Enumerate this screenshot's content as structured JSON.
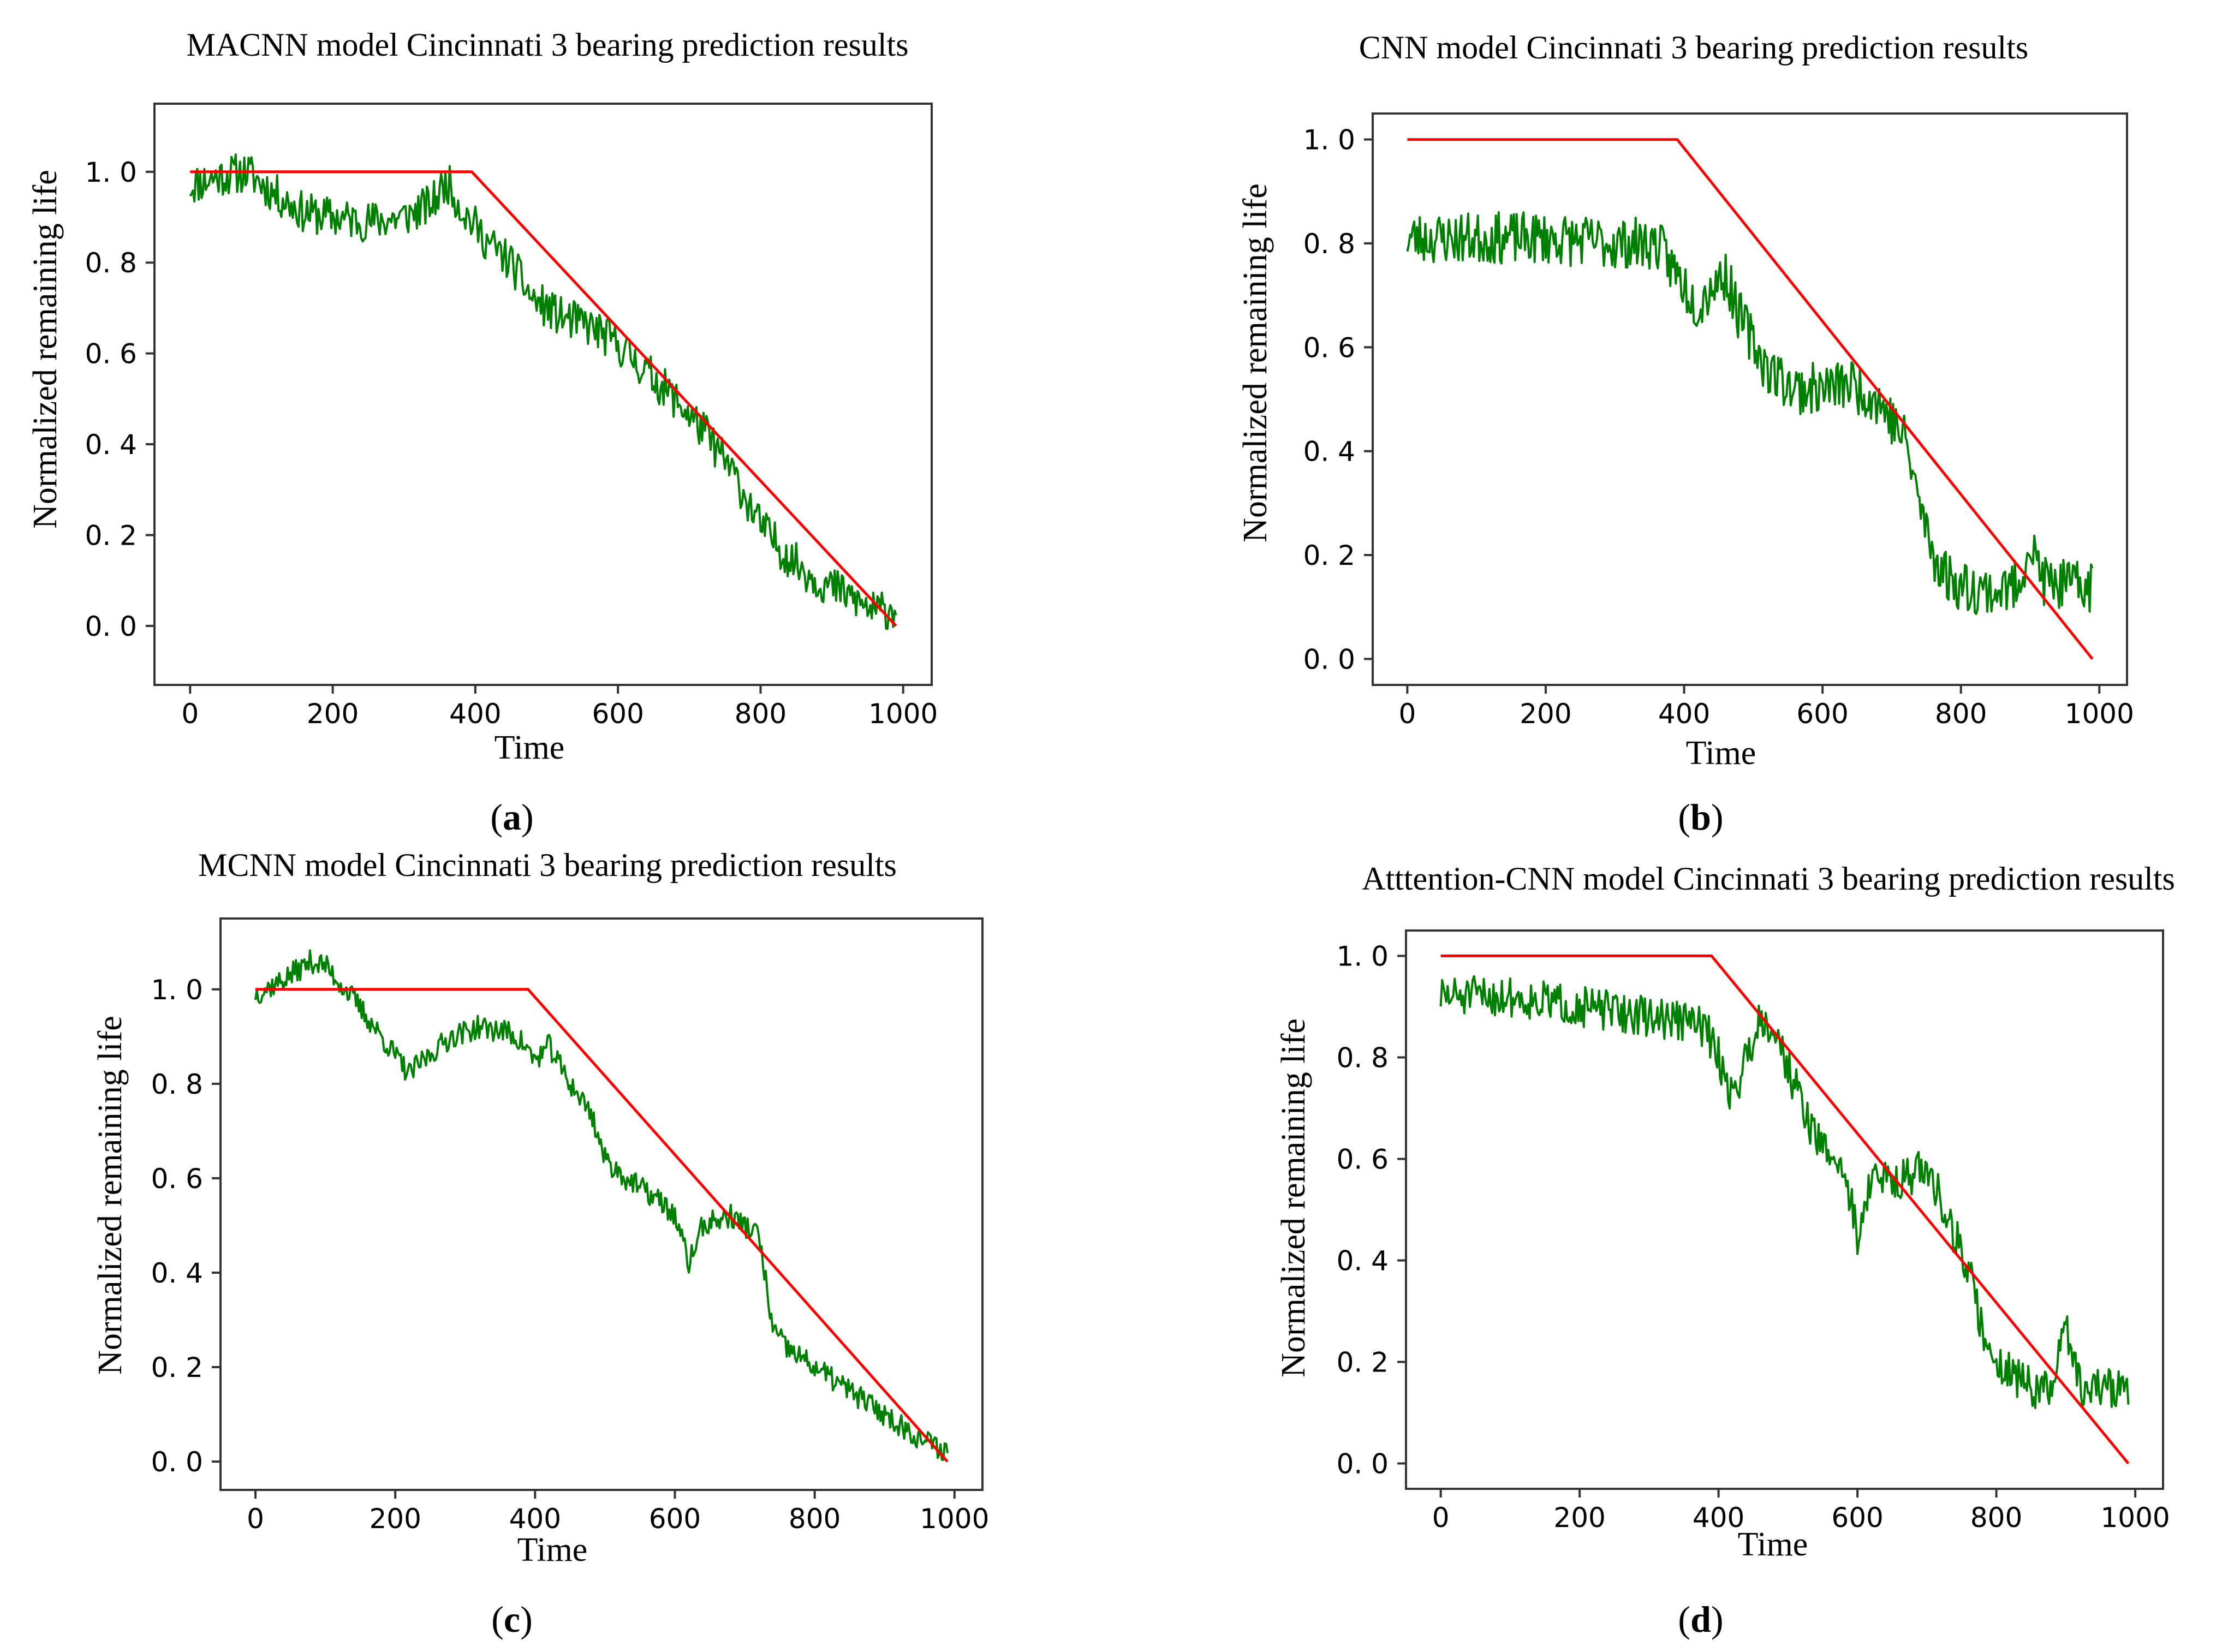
{
  "chart_data": [
    {
      "type": "line",
      "panel": "a",
      "title": "MACNN model Cincinnati 3 bearing prediction results",
      "xlabel": "Time",
      "ylabel": "Normalized remaining life",
      "caption_letter": "a",
      "xlim": [
        -50,
        1040
      ],
      "ylim": [
        -0.13,
        1.15
      ],
      "xticks": [
        0,
        200,
        400,
        600,
        800,
        1000
      ],
      "yticks": [
        0.0,
        0.2,
        0.4,
        0.6,
        0.8,
        1.0
      ],
      "ytick_labels": [
        "0. 0",
        "0. 2",
        "0. 4",
        "0. 6",
        "0. 8",
        "1. 0"
      ],
      "grid": false,
      "series": [
        {
          "role": "actual",
          "color": "#ff0000",
          "x": [
            0,
            395,
            990
          ],
          "y": [
            1.0,
            1.0,
            0.0
          ]
        },
        {
          "role": "predicted",
          "color": "#008000",
          "noise": 0.045,
          "seed": 11,
          "x": [
            0,
            40,
            80,
            120,
            160,
            200,
            250,
            300,
            340,
            360,
            380,
            400,
            420,
            450,
            480,
            520,
            560,
            600,
            640,
            680,
            720,
            760,
            800,
            840,
            880,
            920,
            960,
            990
          ],
          "y": [
            0.97,
            0.99,
            1.0,
            0.95,
            0.91,
            0.9,
            0.89,
            0.9,
            0.93,
            0.98,
            0.92,
            0.88,
            0.84,
            0.8,
            0.72,
            0.68,
            0.66,
            0.62,
            0.56,
            0.5,
            0.43,
            0.34,
            0.22,
            0.15,
            0.1,
            0.07,
            0.03,
            0.04
          ]
        }
      ]
    },
    {
      "type": "line",
      "panel": "b",
      "title": "CNN model Cincinnati 3 bearing prediction results",
      "xlabel": "Time",
      "ylabel": "Normalized remaining life",
      "caption_letter": "b",
      "xlim": [
        -50,
        1040
      ],
      "ylim": [
        -0.05,
        1.05
      ],
      "xticks": [
        0,
        200,
        400,
        600,
        800,
        1000
      ],
      "yticks": [
        0.0,
        0.2,
        0.4,
        0.6,
        0.8,
        1.0
      ],
      "ytick_labels": [
        "0. 0",
        "0. 2",
        "0. 4",
        "0. 6",
        "0. 8",
        "1. 0"
      ],
      "grid": false,
      "series": [
        {
          "role": "actual",
          "color": "#ff0000",
          "x": [
            0,
            390,
            990
          ],
          "y": [
            1.0,
            1.0,
            0.0
          ]
        },
        {
          "role": "predicted",
          "color": "#008000",
          "noise": 0.05,
          "seed": 23,
          "x": [
            0,
            100,
            200,
            300,
            360,
            380,
            420,
            440,
            460,
            480,
            520,
            560,
            600,
            640,
            680,
            700,
            720,
            740,
            760,
            780,
            800,
            850,
            880,
            900,
            920,
            950,
            990
          ],
          "y": [
            0.81,
            0.81,
            0.81,
            0.8,
            0.8,
            0.76,
            0.68,
            0.72,
            0.74,
            0.66,
            0.56,
            0.52,
            0.52,
            0.53,
            0.5,
            0.46,
            0.42,
            0.3,
            0.2,
            0.16,
            0.14,
            0.13,
            0.14,
            0.22,
            0.15,
            0.14,
            0.14
          ]
        }
      ]
    },
    {
      "type": "line",
      "panel": "c",
      "title": "MCNN model Cincinnati 3 bearing prediction results",
      "xlabel": "Time",
      "ylabel": "Normalized remaining life",
      "caption_letter": "c",
      "xlim": [
        -50,
        1040
      ],
      "ylim": [
        -0.06,
        1.15
      ],
      "xticks": [
        0,
        200,
        400,
        600,
        800,
        1000
      ],
      "yticks": [
        0.0,
        0.2,
        0.4,
        0.6,
        0.8,
        1.0
      ],
      "ytick_labels": [
        "0. 0",
        "0. 2",
        "0. 4",
        "0. 6",
        "0. 8",
        "1. 0"
      ],
      "grid": false,
      "series": [
        {
          "role": "actual",
          "color": "#ff0000",
          "x": [
            0,
            390,
            990
          ],
          "y": [
            1.0,
            1.0,
            0.0
          ]
        },
        {
          "role": "predicted",
          "color": "#008000",
          "noise": 0.025,
          "seed": 37,
          "x": [
            0,
            40,
            80,
            100,
            140,
            170,
            200,
            220,
            240,
            280,
            320,
            360,
            380,
            400,
            420,
            450,
            480,
            500,
            530,
            560,
            580,
            600,
            620,
            640,
            680,
            720,
            740,
            760,
            800,
            850,
            900,
            950,
            990
          ],
          "y": [
            0.99,
            1.02,
            1.06,
            1.05,
            0.98,
            0.92,
            0.86,
            0.82,
            0.85,
            0.9,
            0.92,
            0.91,
            0.89,
            0.85,
            0.88,
            0.8,
            0.74,
            0.64,
            0.6,
            0.57,
            0.55,
            0.52,
            0.42,
            0.5,
            0.52,
            0.48,
            0.28,
            0.24,
            0.2,
            0.15,
            0.1,
            0.05,
            0.02
          ]
        }
      ]
    },
    {
      "type": "line",
      "panel": "d",
      "title": "Atttention-CNN model Cincinnati 3 bearing prediction results",
      "xlabel": "Time",
      "ylabel": "Normalized remaining life",
      "caption_letter": "d",
      "xlim": [
        -50,
        1040
      ],
      "ylim": [
        -0.05,
        1.05
      ],
      "xticks": [
        0,
        200,
        400,
        600,
        800,
        1000
      ],
      "yticks": [
        0.0,
        0.2,
        0.4,
        0.6,
        0.8,
        1.0
      ],
      "ytick_labels": [
        "0. 0",
        "0. 2",
        "0. 4",
        "0. 6",
        "0. 8",
        "1. 0"
      ],
      "grid": false,
      "series": [
        {
          "role": "actual",
          "color": "#ff0000",
          "x": [
            0,
            390,
            990
          ],
          "y": [
            1.0,
            1.0,
            0.0
          ]
        },
        {
          "role": "predicted",
          "color": "#008000",
          "noise": 0.04,
          "seed": 51,
          "x": [
            0,
            100,
            200,
            300,
            360,
            380,
            400,
            420,
            440,
            460,
            480,
            500,
            540,
            580,
            600,
            620,
            660,
            700,
            720,
            760,
            780,
            800,
            850,
            880,
            900,
            920,
            950,
            990
          ],
          "y": [
            0.92,
            0.92,
            0.9,
            0.88,
            0.87,
            0.86,
            0.8,
            0.72,
            0.8,
            0.88,
            0.86,
            0.78,
            0.64,
            0.58,
            0.45,
            0.56,
            0.56,
            0.58,
            0.52,
            0.38,
            0.26,
            0.2,
            0.15,
            0.14,
            0.28,
            0.15,
            0.15,
            0.15
          ]
        }
      ]
    }
  ]
}
